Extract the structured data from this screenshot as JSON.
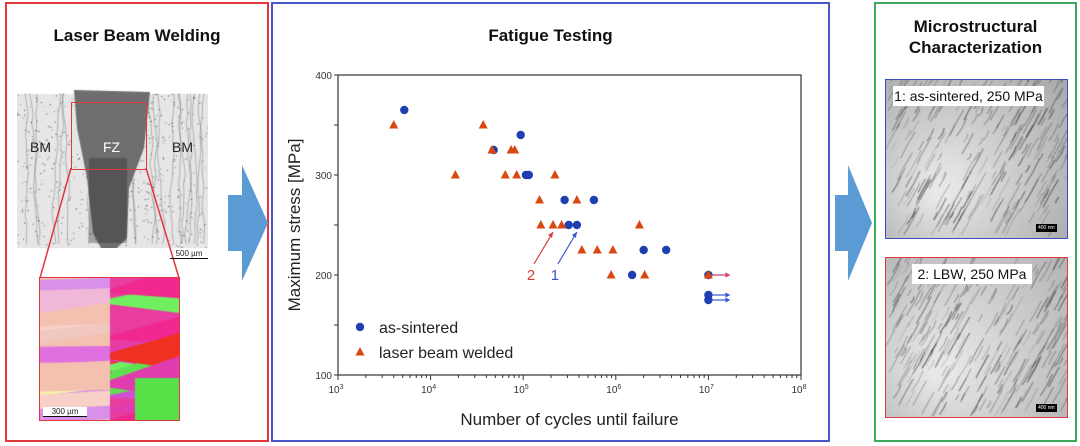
{
  "left_panel": {
    "title": "Laser Beam Welding",
    "labels": {
      "bm_left": "BM",
      "fz": "FZ",
      "bm_right": "BM"
    },
    "scale_bar_macro": "500 µm",
    "scale_bar_ebsd": "300 µm",
    "border_color": "#e0383c"
  },
  "middle_panel": {
    "title": "Fatigue Testing",
    "border_color": "#4a55c8"
  },
  "right_panel": {
    "title_line1": "Microstructural",
    "title_line2": "Characterization",
    "image1_caption": "1: as-sintered, 250 MPa",
    "image2_caption": "2: LBW, 250 MPa",
    "scale_bar": "400 nm",
    "border_color": "#3aaa5a"
  },
  "arrow_color": "#5b9bd5",
  "chart_data": {
    "type": "scatter",
    "xlabel": "Number of cycles until failure",
    "ylabel": "Maximum stress [MPa]",
    "xscale": "log",
    "xlim": [
      1000,
      100000000
    ],
    "ylim": [
      100,
      400
    ],
    "xticks": [
      {
        "exp": "3"
      },
      {
        "exp": "4"
      },
      {
        "exp": "5"
      },
      {
        "exp": "6"
      },
      {
        "exp": "7"
      },
      {
        "exp": "8"
      }
    ],
    "yticks": [
      "100",
      "200",
      "300",
      "400"
    ],
    "grid": false,
    "legend_placement": "bottom-left",
    "series": [
      {
        "name": "as-sintered",
        "marker": "circle",
        "color": "#1f3fb0",
        "points": [
          [
            5200,
            365
          ],
          [
            94000,
            340
          ],
          [
            48000,
            325
          ],
          [
            107000,
            300
          ],
          [
            115000,
            300
          ],
          [
            280000,
            275
          ],
          [
            580000,
            275
          ],
          [
            310000,
            250
          ],
          [
            380000,
            250
          ],
          [
            2000000,
            225
          ],
          [
            3500000,
            225
          ],
          [
            1500000,
            200
          ]
        ],
        "runouts": [
          [
            10000000,
            200
          ],
          [
            10000000,
            180
          ],
          [
            10000000,
            175
          ]
        ]
      },
      {
        "name": "laser beam welded",
        "marker": "triangle",
        "color": "#d9480f",
        "points": [
          [
            4000,
            350
          ],
          [
            37000,
            350
          ],
          [
            46000,
            325
          ],
          [
            74000,
            325
          ],
          [
            81000,
            325
          ],
          [
            18500,
            300
          ],
          [
            64000,
            300
          ],
          [
            85000,
            300
          ],
          [
            220000,
            300
          ],
          [
            150000,
            275
          ],
          [
            380000,
            275
          ],
          [
            155000,
            250
          ],
          [
            210000,
            250
          ],
          [
            260000,
            250
          ],
          [
            1800000,
            250
          ],
          [
            430000,
            225
          ],
          [
            630000,
            225
          ],
          [
            930000,
            225
          ],
          [
            890000,
            200
          ],
          [
            2050000,
            200
          ]
        ],
        "runouts": [
          [
            10000000,
            200
          ]
        ]
      }
    ],
    "annotations": [
      {
        "text": "2",
        "color": "#e0383c",
        "target": [
          210000,
          250
        ]
      },
      {
        "text": "1",
        "color": "#3a55c8",
        "target": [
          380000,
          250
        ]
      }
    ]
  }
}
